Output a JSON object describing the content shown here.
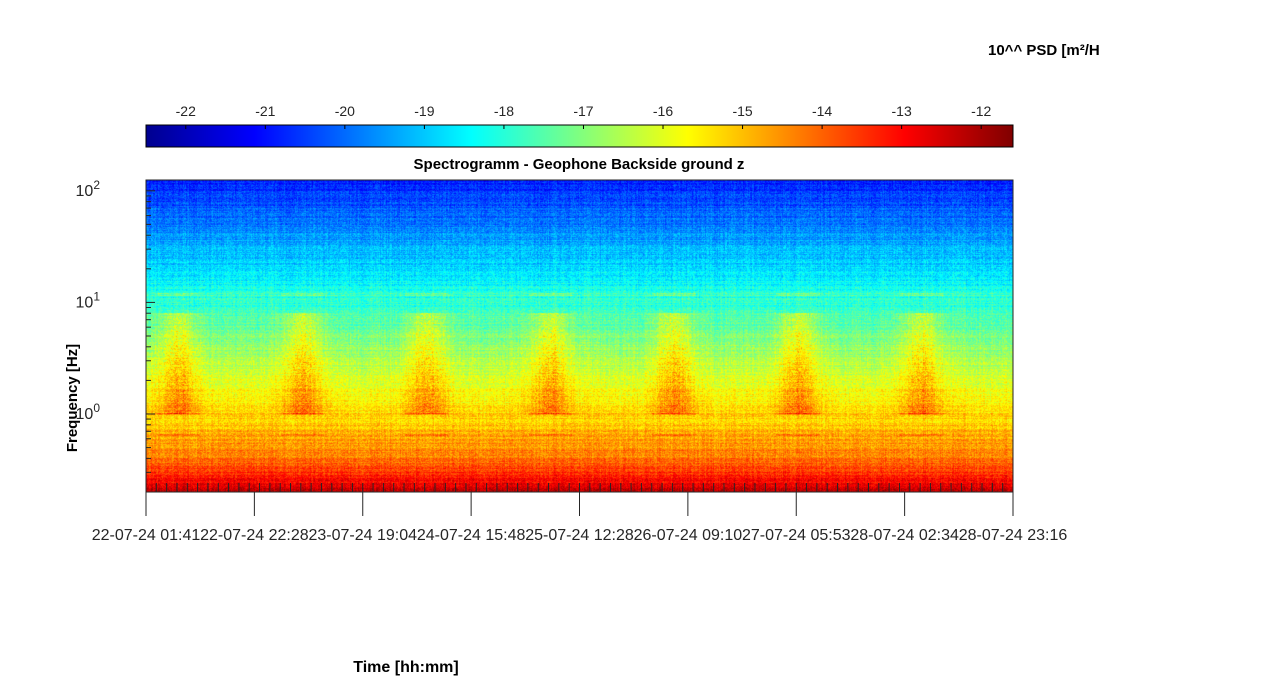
{
  "chart_data": {
    "type": "heatmap",
    "title": "Spectrogramm - Geophone Backside ground z",
    "xlabel": "Time [hh:mm]",
    "ylabel": "Frequency [Hz]",
    "colorbar": {
      "label": "10^^ PSD [m²/H",
      "range": [
        -22.5,
        -11.6
      ],
      "ticks": [
        -22,
        -21,
        -20,
        -19,
        -18,
        -17,
        -16,
        -15,
        -14,
        -13,
        -12
      ],
      "colormap": "jet",
      "location": "top"
    },
    "y_scale": "log",
    "y_range": [
      0.2,
      125
    ],
    "y_ticks": [
      1,
      10,
      100
    ],
    "y_tick_labels": [
      "10^0",
      "10^1",
      "10^2"
    ],
    "x_tick_labels": [
      "22-07-24  01:41",
      "22-07-24  22:28",
      "23-07-24  19:04",
      "24-07-24  15:48",
      "25-07-24  12:28",
      "26-07-24  09:10",
      "27-07-24  05:53",
      "28-07-24  02:34",
      "28-07-24  23:16"
    ],
    "days_shown": 7,
    "daytime_activity_bands_hz": [
      1,
      8
    ],
    "narrowband_lines_hz": [
      0.65,
      1.0,
      11.7
    ]
  }
}
